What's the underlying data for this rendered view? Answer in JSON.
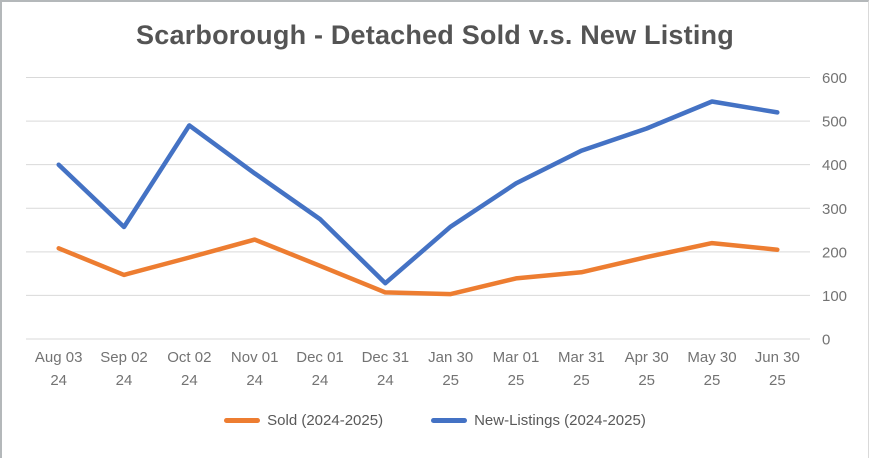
{
  "window": {
    "background": "#ffffff",
    "border_color": "#b4b8ba"
  },
  "chart_data": {
    "type": "line",
    "title": "Scarborough - Detached Sold v.s. New Listing",
    "categories": [
      "Aug 03 24",
      "Sep 02 24",
      "Oct 02 24",
      "Nov 01 24",
      "Dec 01 24",
      "Dec 31 24",
      "Jan 30 25",
      "Mar 01 25",
      "Mar 31 25",
      "Apr 30 25",
      "May 30 25",
      "Jun 30 25"
    ],
    "series": [
      {
        "name": "Sold (2024-2025)",
        "color": "#ED7D31",
        "values": [
          208,
          147,
          187,
          228,
          168,
          107,
          103,
          139,
          153,
          188,
          220,
          205
        ]
      },
      {
        "name": "New-Listings (2024-2025)",
        "color": "#4472C4",
        "values": [
          400,
          257,
          490,
          380,
          275,
          128,
          258,
          357,
          432,
          483,
          545,
          520
        ]
      }
    ],
    "xlabel": "",
    "ylabel": "",
    "y_axis": {
      "min": 0,
      "max": 600,
      "step": 100,
      "side": "right",
      "tick_labels": [
        "0",
        "100",
        "200",
        "300",
        "400",
        "500",
        "600"
      ]
    },
    "grid": true,
    "gridline_color": "#D9D9D9",
    "axis_text_color": "#737373",
    "legend_position": "bottom"
  }
}
